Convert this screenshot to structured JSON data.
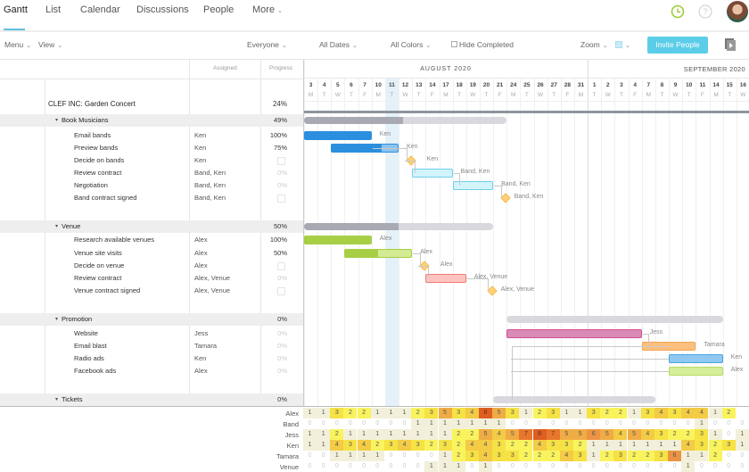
{
  "nav": {
    "tabs": [
      "Gantt",
      "List",
      "Calendar",
      "Discussions",
      "People",
      "More"
    ],
    "active": "Gantt"
  },
  "icons": {
    "clock": "clock-icon",
    "help": "help-icon",
    "avatar": "avatar",
    "presentation": "presentation-icon"
  },
  "toolbar": {
    "menu": "Menu",
    "view": "View",
    "everyone": "Everyone",
    "all_dates": "All Dates",
    "all_colors": "All Colors",
    "hide_completed": "Hide Completed",
    "zoom": "Zoom",
    "invite": "Invite People"
  },
  "columns": {
    "assigned": "Assigned",
    "progress": "Progress"
  },
  "months": [
    "AUGUST 2020",
    "SEPTEMBER 2020"
  ],
  "days": [
    [
      "3",
      "M"
    ],
    [
      "4",
      "T"
    ],
    [
      "5",
      "W"
    ],
    [
      "6",
      "T"
    ],
    [
      "7",
      "F"
    ],
    [
      "10",
      "M"
    ],
    [
      "11",
      "T"
    ],
    [
      "12",
      "W"
    ],
    [
      "13",
      "T"
    ],
    [
      "14",
      "F"
    ],
    [
      "17",
      "M"
    ],
    [
      "18",
      "T"
    ],
    [
      "19",
      "W"
    ],
    [
      "20",
      "T"
    ],
    [
      "21",
      "F"
    ],
    [
      "24",
      "M"
    ],
    [
      "25",
      "T"
    ],
    [
      "26",
      "W"
    ],
    [
      "27",
      "T"
    ],
    [
      "28",
      "F"
    ],
    [
      "31",
      "M"
    ],
    [
      "1",
      "T"
    ],
    [
      "2",
      "W"
    ],
    [
      "3",
      "T"
    ],
    [
      "4",
      "F"
    ],
    [
      "7",
      "M"
    ],
    [
      "8",
      "T"
    ],
    [
      "9",
      "W"
    ],
    [
      "10",
      "T"
    ],
    [
      "11",
      "F"
    ],
    [
      "14",
      "M"
    ],
    [
      "15",
      "T"
    ],
    [
      "16",
      "W"
    ]
  ],
  "today_index": 6,
  "project": {
    "name": "CLEF INC: Garden Concert",
    "progress": "24%"
  },
  "rows": [
    {
      "type": "group",
      "name": "Book Musicians",
      "progress": "49%",
      "start": 0,
      "end": 15,
      "done": 0.49
    },
    {
      "type": "task",
      "name": "Email bands",
      "assigned": "Ken",
      "progress": "100%",
      "start": 0,
      "end": 5,
      "done": 1,
      "color": "#2b8fe0",
      "light": "#8cc4ef"
    },
    {
      "type": "task",
      "name": "Preview bands",
      "assigned": "Ken",
      "progress": "75%",
      "start": 2,
      "end": 7,
      "done": 0.75,
      "color": "#2b8fe0",
      "light": "#8cc4ef"
    },
    {
      "type": "milestone",
      "name": "Decide on bands",
      "assigned": "Ken",
      "progress": "",
      "at": 7.4
    },
    {
      "type": "task",
      "name": "Review contract",
      "assigned": "Band, Ken",
      "progress": "0%",
      "start": 8,
      "end": 11,
      "done": 0,
      "color": "#6fd0ea",
      "light": "#d3f4fb"
    },
    {
      "type": "task",
      "name": "Negotiation",
      "assigned": "Band, Ken",
      "progress": "0%",
      "start": 11,
      "end": 14,
      "done": 0,
      "color": "#6fd0ea",
      "light": "#d3f4fb"
    },
    {
      "type": "milestone",
      "name": "Band contract signed",
      "assigned": "Band, Ken",
      "progress": "",
      "at": 14.4
    },
    {
      "type": "group",
      "name": "Venue",
      "progress": "50%",
      "start": 0,
      "end": 14,
      "done": 0.5
    },
    {
      "type": "task",
      "name": "Research available venues",
      "assigned": "Alex",
      "progress": "100%",
      "start": 0,
      "end": 5,
      "done": 1,
      "color": "#a6cf45",
      "light": "#d4ea93"
    },
    {
      "type": "task",
      "name": "Venue site visits",
      "assigned": "Alex",
      "progress": "50%",
      "start": 3,
      "end": 8,
      "done": 0.5,
      "color": "#a6cf45",
      "light": "#d4ea93"
    },
    {
      "type": "milestone",
      "name": "Decide on venue",
      "assigned": "Alex",
      "progress": "",
      "at": 8.4
    },
    {
      "type": "task",
      "name": "Review contract",
      "assigned": "Alex, Venue",
      "progress": "0%",
      "start": 9,
      "end": 12,
      "done": 0,
      "color": "#ee7f76",
      "light": "#fdc4bf"
    },
    {
      "type": "milestone",
      "name": "Venue contract signed",
      "assigned": "Alex, Venue",
      "progress": "",
      "at": 13.4
    },
    {
      "type": "group",
      "name": "Promotion",
      "progress": "0%",
      "start": 15,
      "end": 31,
      "done": 0
    },
    {
      "type": "task",
      "name": "Website",
      "assigned": "Jess",
      "progress": "0%",
      "start": 15,
      "end": 25,
      "done": 0,
      "color": "#cf4f97",
      "light": "#d98ab5"
    },
    {
      "type": "task",
      "name": "Email blast",
      "assigned": "Tamara",
      "progress": "0%",
      "start": 25,
      "end": 29,
      "done": 0,
      "color": "#f5a450",
      "light": "#fdbf7e"
    },
    {
      "type": "task",
      "name": "Radio ads",
      "assigned": "Ken",
      "progress": "0%",
      "start": 27,
      "end": 31,
      "done": 0,
      "color": "#4aa3e5",
      "light": "#8fc9f0"
    },
    {
      "type": "task",
      "name": "Facebook ads",
      "assigned": "Alex",
      "progress": "0%",
      "start": 27,
      "end": 31,
      "done": 0,
      "color": "#b5dc62",
      "light": "#d5ee9a"
    },
    {
      "type": "group",
      "name": "Tickets",
      "progress": "0%",
      "start": 14,
      "end": 26,
      "done": 0
    }
  ],
  "workload": [
    {
      "name": "Alex",
      "values": [
        1,
        1,
        3,
        2,
        2,
        1,
        1,
        1,
        2,
        3,
        5,
        3,
        4,
        8,
        5,
        3,
        1,
        2,
        3,
        1,
        1,
        3,
        2,
        2,
        1,
        3,
        4,
        3,
        4,
        4,
        1,
        2,
        null
      ]
    },
    {
      "name": "Band",
      "values": [
        0,
        0,
        0,
        0,
        0,
        0,
        0,
        0,
        1,
        1,
        1,
        1,
        1,
        1,
        1,
        0,
        0,
        0,
        0,
        0,
        0,
        0,
        0,
        0,
        0,
        0,
        0,
        0,
        0,
        1,
        0,
        0,
        0
      ]
    },
    {
      "name": "Jess",
      "values": [
        1,
        1,
        2,
        1,
        1,
        1,
        1,
        1,
        1,
        1,
        1,
        2,
        2,
        5,
        4,
        5,
        7,
        8,
        7,
        5,
        5,
        6,
        5,
        4,
        5,
        4,
        3,
        2,
        2,
        3,
        1,
        0,
        1
      ]
    },
    {
      "name": "Ken",
      "values": [
        1,
        1,
        4,
        3,
        4,
        2,
        3,
        4,
        3,
        2,
        3,
        2,
        4,
        4,
        3,
        2,
        2,
        4,
        3,
        3,
        2,
        1,
        1,
        1,
        1,
        1,
        1,
        1,
        4,
        3,
        2,
        3,
        1
      ]
    },
    {
      "name": "Tamara",
      "values": [
        0,
        0,
        1,
        1,
        1,
        1,
        0,
        0,
        0,
        0,
        1,
        2,
        3,
        4,
        3,
        3,
        2,
        2,
        2,
        4,
        3,
        1,
        2,
        3,
        2,
        2,
        3,
        6,
        1,
        1,
        2,
        0,
        0
      ]
    },
    {
      "name": "Venue",
      "values": [
        0,
        0,
        0,
        0,
        0,
        0,
        0,
        0,
        0,
        1,
        1,
        1,
        0,
        1,
        0,
        0,
        0,
        0,
        0,
        0,
        0,
        0,
        0,
        0,
        0,
        0,
        0,
        0,
        1,
        0,
        0,
        0,
        0
      ]
    }
  ],
  "heat_colors": [
    "#ffffff",
    "#f2f0da",
    "#f9f35e",
    "#f6e244",
    "#f3cb45",
    "#f0ac44",
    "#ec9443",
    "#e8772e",
    "#df5e22"
  ],
  "accent": "#5bc0de"
}
